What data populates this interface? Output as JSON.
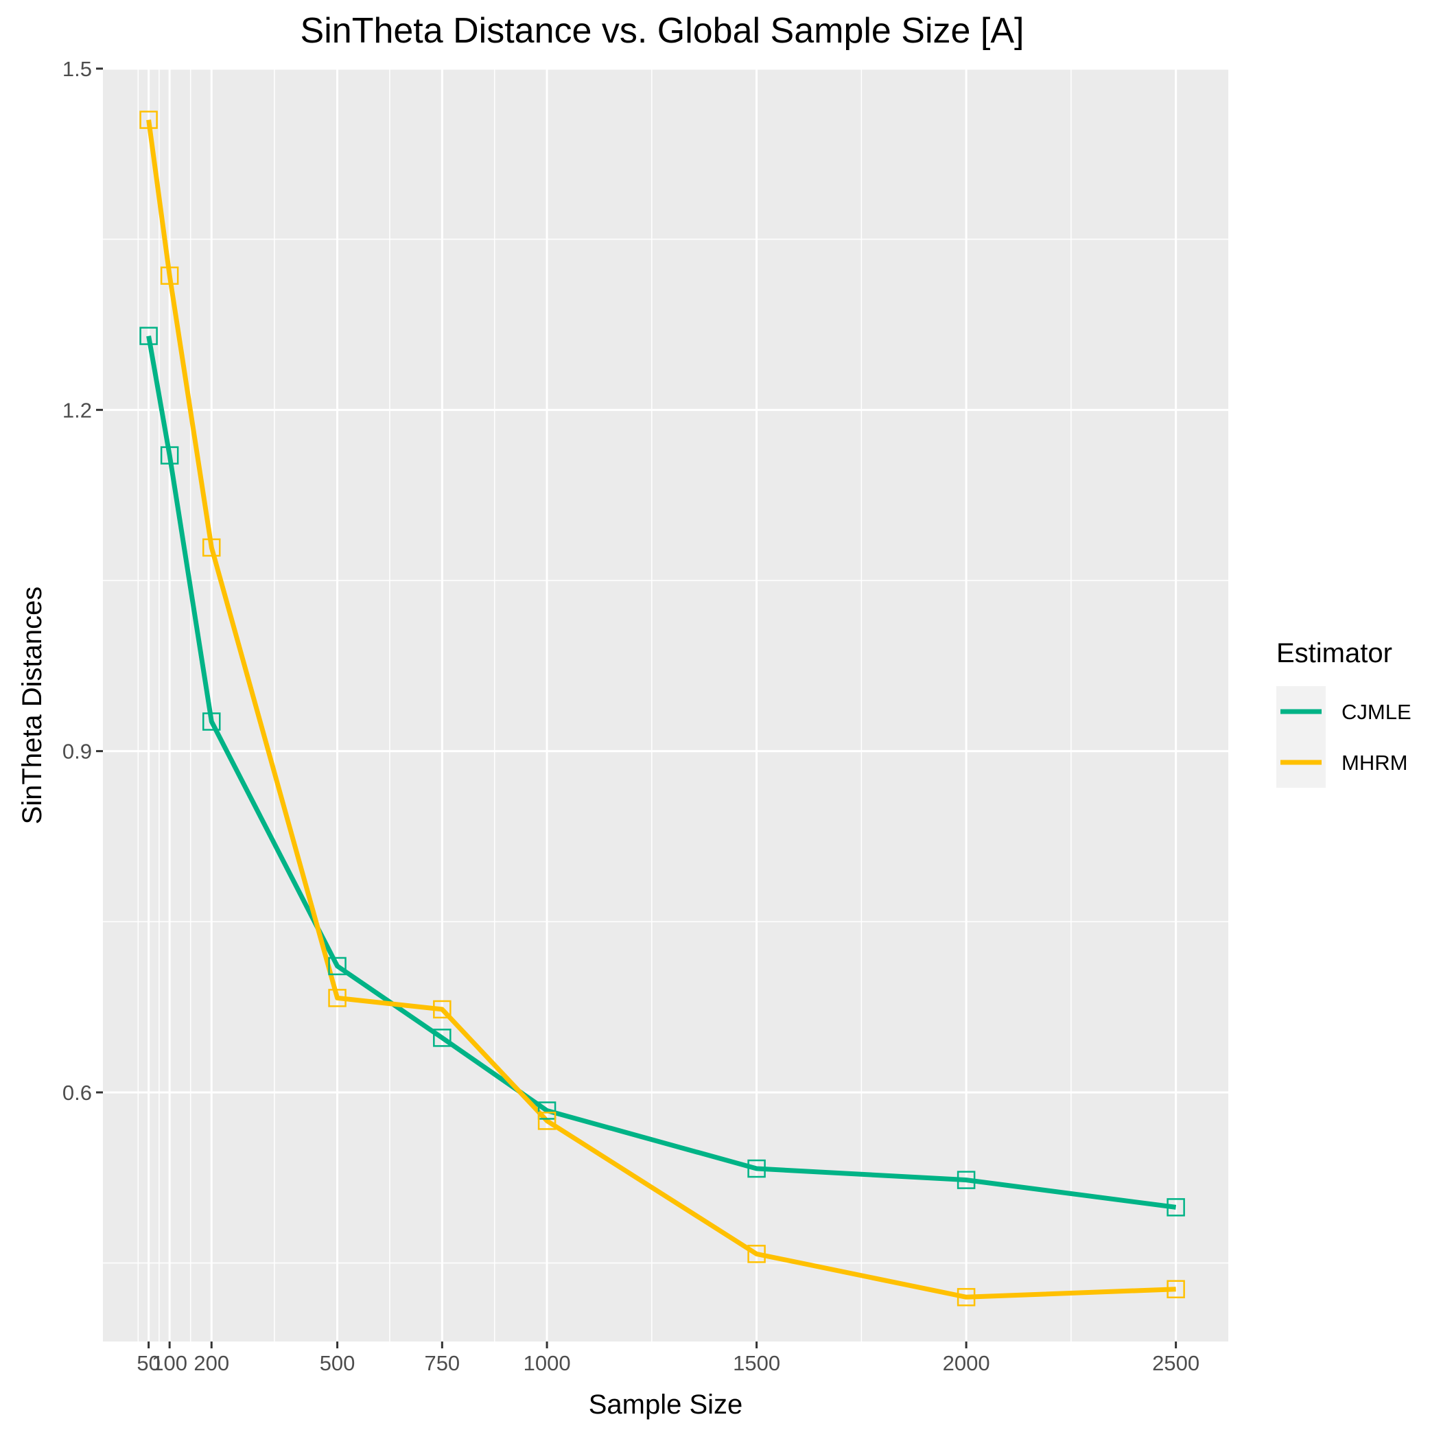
{
  "chart_data": {
    "type": "line",
    "title": "SinTheta Distance vs. Global Sample Size [A]",
    "xlabel": "Sample Size",
    "ylabel": "SinTheta Distances",
    "x": [
      50,
      100,
      200,
      500,
      750,
      1000,
      1500,
      2000,
      2500
    ],
    "x_tick_labels": [
      "50",
      "100",
      "200",
      "500",
      "750",
      "1000",
      "1500",
      "2000",
      "2500"
    ],
    "y_ticks": [
      0.6,
      0.9,
      1.2,
      1.5
    ],
    "y_tick_labels": [
      "0.6",
      "0.9",
      "1.2",
      "1.5"
    ],
    "xlim": [
      -59,
      2625
    ],
    "ylim": [
      0.381,
      1.5
    ],
    "grid": true,
    "panel_background": "#ebebeb",
    "legend": {
      "title": "Estimator",
      "placement": "right",
      "entries": [
        "CJMLE",
        "MHRM"
      ]
    },
    "marker": "open-square",
    "series": [
      {
        "name": "CJMLE",
        "color": "#00b386",
        "values": [
          1.265,
          1.16,
          0.926,
          0.711,
          0.648,
          0.584,
          0.533,
          0.523,
          0.499
        ]
      },
      {
        "name": "MHRM",
        "color": "#ffc000",
        "values": [
          1.455,
          1.318,
          1.079,
          0.683,
          0.673,
          0.575,
          0.458,
          0.42,
          0.427
        ]
      }
    ]
  }
}
